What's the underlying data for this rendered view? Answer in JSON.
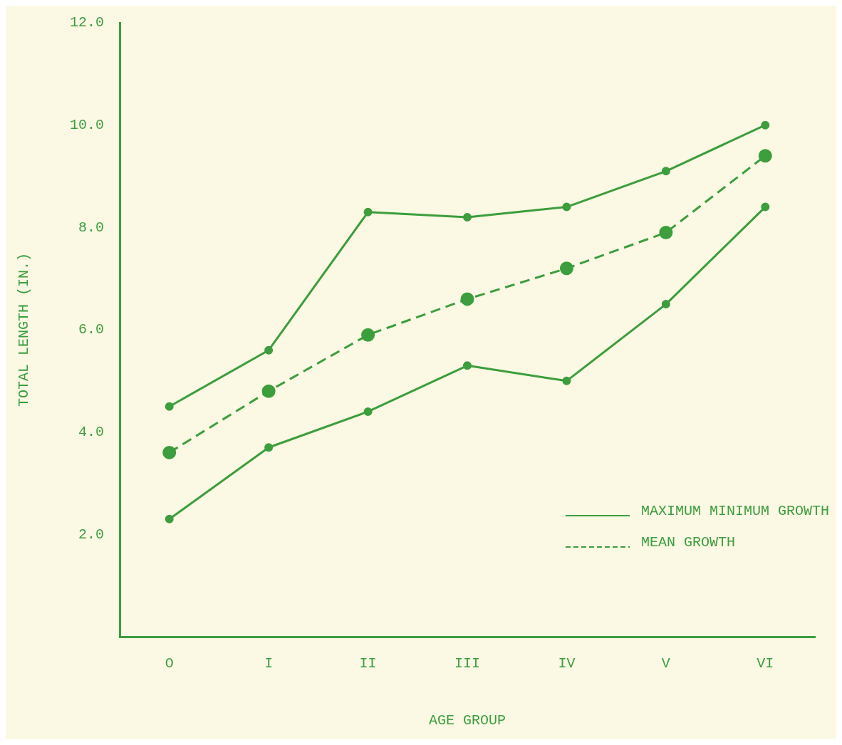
{
  "chart_data": {
    "type": "line",
    "xlabel": "AGE GROUP",
    "ylabel": "TOTAL LENGTH (IN.)",
    "categories": [
      "O",
      "I",
      "II",
      "III",
      "IV",
      "V",
      "VI"
    ],
    "series": [
      {
        "name": "MAXIMUM MINIMUM GROWTH",
        "color": "#3c9e3c",
        "values": [
          4.5,
          5.6,
          8.3,
          8.2,
          8.4,
          9.1,
          10.0
        ],
        "line_style": "solid"
      },
      {
        "color": "#3c9e3c",
        "values": [
          2.3,
          3.7,
          4.4,
          5.3,
          5.0,
          6.5,
          8.4
        ],
        "line_style": "solid"
      },
      {
        "name": "MEAN GROWTH",
        "color": "#3c9e3c",
        "values": [
          3.6,
          4.8,
          5.9,
          6.6,
          7.2,
          7.9,
          9.4
        ],
        "line_style": "dashed"
      }
    ],
    "ylim": [
      0,
      12
    ],
    "yticks": [
      {
        "value": 2,
        "label": "2.0"
      },
      {
        "value": 4,
        "label": "4.0"
      },
      {
        "value": 6,
        "label": "6.0"
      },
      {
        "value": 8,
        "label": "8.0"
      },
      {
        "value": 10,
        "label": "10.0"
      },
      {
        "value": 12,
        "label": "12.0"
      }
    ],
    "marker": "circle",
    "grid": false,
    "legend": "bottom right"
  }
}
